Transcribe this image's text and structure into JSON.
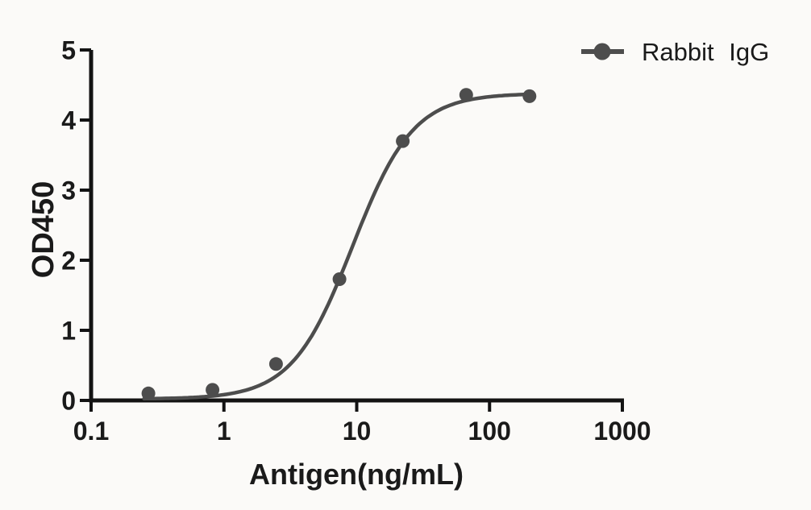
{
  "figure": {
    "background_color": "#fbfaf8",
    "axis_color": "#131313",
    "text_color": "#1a1a1a"
  },
  "chart_data": {
    "type": "line",
    "title": "",
    "xlabel": "Antigen(ng/mL)",
    "ylabel": "OD450",
    "x_scale": "log10",
    "xlim": [
      0.1,
      1000
    ],
    "ylim": [
      0,
      5
    ],
    "x_ticks": [
      0.1,
      1,
      10,
      100,
      1000
    ],
    "x_tick_labels": [
      "0.1",
      "1",
      "10",
      "100",
      "1000"
    ],
    "y_ticks": [
      0,
      1,
      2,
      3,
      4,
      5
    ],
    "y_tick_labels": [
      "0",
      "1",
      "2",
      "3",
      "4",
      "5"
    ],
    "grid": false,
    "legend_position": "top-right",
    "series": [
      {
        "name": "Rabbit IgG",
        "marker": "circle",
        "color": "#4d4d4d",
        "x": [
          0.27,
          0.82,
          2.47,
          7.41,
          22.2,
          66.7,
          200
        ],
        "y": [
          0.1,
          0.15,
          0.52,
          1.73,
          3.7,
          4.36,
          4.34
        ],
        "fit_curve": {
          "model": "4PL",
          "bottom": 0.02,
          "top": 4.38,
          "ec50": 9.3,
          "hill": 1.9,
          "x_range": [
            0.25,
            200
          ]
        }
      }
    ]
  }
}
